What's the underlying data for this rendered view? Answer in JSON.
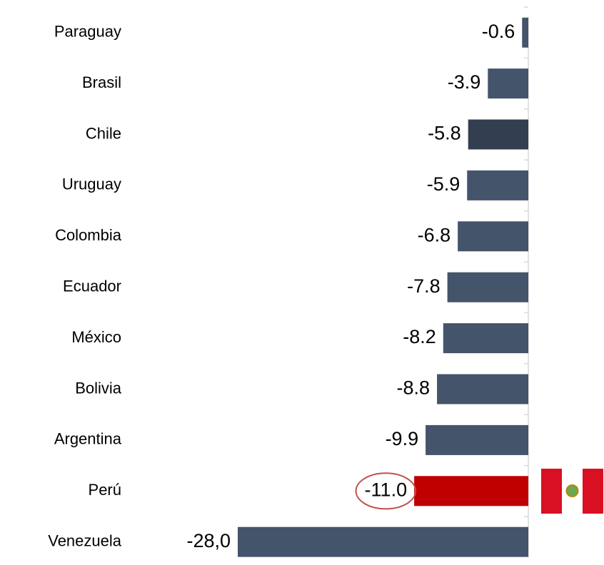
{
  "chart_data": {
    "type": "bar",
    "orientation": "horizontal",
    "categories": [
      "Paraguay",
      "Brasil",
      "Chile",
      "Uruguay",
      "Colombia",
      "Ecuador",
      "México",
      "Bolivia",
      "Argentina",
      "Perú",
      "Venezuela"
    ],
    "values": [
      -0.6,
      -3.9,
      -5.8,
      -5.9,
      -6.8,
      -7.8,
      -8.2,
      -8.8,
      -9.9,
      -11.0,
      -28.0
    ],
    "value_labels": [
      "-0.6",
      "-3.9",
      "-5.8",
      "-5.9",
      "-6.8",
      "-7.8",
      "-8.2",
      "-8.8",
      "-9.9",
      "-11.0",
      "-28,0"
    ],
    "colors": [
      "#44546a",
      "#44546a",
      "#333f50",
      "#44546a",
      "#44546a",
      "#44546a",
      "#44546a",
      "#44546a",
      "#44546a",
      "#c00000",
      "#44546a"
    ],
    "circled": [
      false,
      false,
      false,
      false,
      false,
      false,
      false,
      false,
      false,
      true,
      false
    ],
    "xlim": [
      -28,
      0
    ]
  }
}
